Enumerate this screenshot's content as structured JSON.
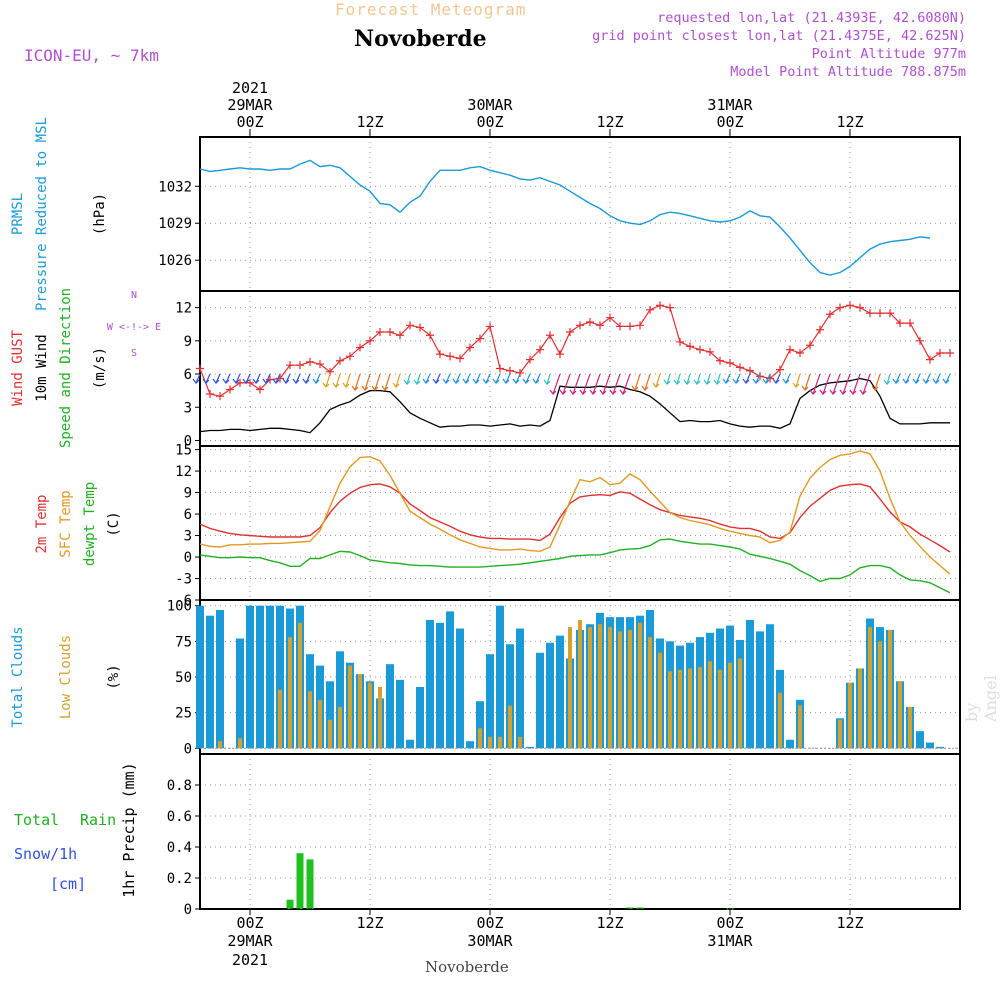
{
  "header": {
    "title_top": "Forecast Meteogram",
    "location": "Novoberde",
    "model": "ICON-EU, ~ 7km",
    "requested": "requested lon,lat (21.4393E, 42.6080N)",
    "grid_point": "grid point closest lon,lat (21.4375E, 42.625N)",
    "point_alt": "Point Altitude 977m",
    "model_alt": "Model Point Altitude 788.875m",
    "footer_location": "Novoberde",
    "watermark": "by Angel"
  },
  "time_axis": {
    "top_year": "2021",
    "ticks": [
      {
        "hour": 0,
        "label": "00Z",
        "date": "29MAR",
        "year": "2021"
      },
      {
        "hour": 12,
        "label": "12Z",
        "date": "",
        "year": ""
      },
      {
        "hour": 24,
        "label": "00Z",
        "date": "30MAR",
        "year": ""
      },
      {
        "hour": 36,
        "label": "12Z",
        "date": "",
        "year": ""
      },
      {
        "hour": 48,
        "label": "00Z",
        "date": "31MAR",
        "year": ""
      },
      {
        "hour": 60,
        "label": "12Z",
        "date": "",
        "year": ""
      }
    ],
    "x_range_hours": [
      -5,
      71
    ]
  },
  "panels": {
    "pressure": {
      "labels": [
        "PRMSL",
        "Pressure Reduced to MSL"
      ],
      "unit": "(hPa)",
      "label_color": "#1a9ad6"
    },
    "wind": {
      "labels": [
        "Wind GUST",
        "10m Wind",
        "Speed and Direction"
      ],
      "label_colors": [
        "#e03030",
        "#000000",
        "#20b020"
      ],
      "unit": "(m/s)",
      "compass": [
        "N",
        "W <-!-> E",
        "S"
      ]
    },
    "temp": {
      "labels": [
        "2m Temp",
        "SFC Temp",
        "dewpt Temp"
      ],
      "label_colors": [
        "#e03030",
        "#e09a20",
        "#20b020"
      ],
      "unit": "(C)"
    },
    "clouds": {
      "labels": [
        "Total Clouds",
        "Low Clouds"
      ],
      "label_colors": [
        "#1a9ad6",
        "#d4a030"
      ],
      "unit": "(%)"
    },
    "precip": {
      "labels": [
        "Total",
        "Rain",
        "Snow/1h",
        "[cm]"
      ],
      "label_colors": [
        "#20b020",
        "#20b020",
        "#3050e0",
        "#3050e0"
      ],
      "unit": "1hr Precip (mm)"
    }
  },
  "chart_data": [
    {
      "type": "line",
      "title": "PRMSL Pressure Reduced to MSL",
      "ylabel": "(hPa)",
      "ylim": [
        1023.5,
        1036
      ],
      "yticks": [
        1026,
        1029,
        1032
      ],
      "x_hours": [
        -5,
        -4,
        -3,
        -2,
        -1,
        0,
        1,
        2,
        3,
        4,
        5,
        6,
        7,
        8,
        9,
        10,
        11,
        12,
        13,
        14,
        15,
        16,
        17,
        18,
        19,
        20,
        21,
        22,
        23,
        24,
        25,
        26,
        27,
        28,
        29,
        30,
        31,
        32,
        33,
        34,
        35,
        36,
        37,
        38,
        39,
        40,
        41,
        42,
        43,
        44,
        45,
        46,
        47,
        48,
        49,
        50,
        51,
        52,
        53,
        54,
        55,
        56,
        57,
        58,
        59,
        60,
        61,
        62,
        63,
        64,
        65,
        66,
        67,
        68,
        69,
        70
      ],
      "series": [
        {
          "name": "PRMSL",
          "color": "#1a9ad6",
          "values": [
            1033.4,
            1033.2,
            1033.3,
            1033.4,
            1033.5,
            1033.4,
            1033.4,
            1033.3,
            1033.4,
            1033.4,
            1033.8,
            1034.1,
            1033.6,
            1033.7,
            1033.5,
            1032.8,
            1032.1,
            1031.6,
            1030.6,
            1030.5,
            1029.9,
            1030.7,
            1031.2,
            1032.4,
            1033.3,
            1033.3,
            1033.3,
            1033.5,
            1033.6,
            1033.3,
            1033.1,
            1032.9,
            1032.6,
            1032.5,
            1032.7,
            1032.4,
            1032.1,
            1031.6,
            1031.1,
            1030.6,
            1030.2,
            1029.6,
            1029.2,
            1029.0,
            1028.9,
            1029.2,
            1029.7,
            1029.9,
            1029.8,
            1029.6,
            1029.4,
            1029.2,
            1029.1,
            1029.2,
            1029.5,
            1030.0,
            1029.6,
            1029.5,
            1028.7,
            1027.8,
            1026.8,
            1025.8,
            1025.0,
            1024.8,
            1025.0,
            1025.5,
            1026.2,
            1026.9,
            1027.3,
            1027.5,
            1027.6,
            1027.7,
            1027.9,
            1027.8
          ]
        }
      ]
    },
    {
      "type": "line",
      "title": "Wind GUST / 10m Wind Speed and Direction",
      "ylabel": "(m/s)",
      "ylim": [
        -0.5,
        13.5
      ],
      "yticks": [
        0,
        3,
        6,
        9,
        12
      ],
      "x_hours": [
        -5,
        -4,
        -3,
        -2,
        -1,
        0,
        1,
        2,
        3,
        4,
        5,
        6,
        7,
        8,
        9,
        10,
        11,
        12,
        13,
        14,
        15,
        16,
        17,
        18,
        19,
        20,
        21,
        22,
        23,
        24,
        25,
        26,
        27,
        28,
        29,
        30,
        31,
        32,
        33,
        34,
        35,
        36,
        37,
        38,
        39,
        40,
        41,
        42,
        43,
        44,
        45,
        46,
        47,
        48,
        49,
        50,
        51,
        52,
        53,
        54,
        55,
        56,
        57,
        58,
        59,
        60,
        61,
        62,
        63,
        64,
        65,
        66,
        67,
        68,
        69,
        70
      ],
      "series": [
        {
          "name": "Wind GUST",
          "color": "#e03030",
          "values": [
            6.5,
            4.2,
            4.0,
            4.6,
            5.2,
            5.2,
            4.6,
            5.5,
            5.6,
            6.8,
            6.8,
            7.1,
            6.9,
            6.2,
            7.2,
            7.6,
            8.4,
            9.0,
            9.8,
            9.8,
            9.5,
            10.4,
            10.2,
            9.5,
            7.8,
            7.6,
            7.4,
            8.4,
            9.2,
            10.3,
            6.5,
            6.3,
            6.1,
            7.3,
            8.2,
            9.5,
            7.8,
            9.8,
            10.4,
            10.7,
            10.4,
            11.1,
            10.3,
            10.3,
            10.4,
            11.8,
            12.2,
            12.0,
            8.9,
            8.5,
            8.2,
            8.0,
            7.2,
            7.0,
            6.6,
            6.3,
            5.8,
            5.6,
            6.4,
            8.2,
            7.9,
            8.6,
            10.0,
            11.4,
            12.0,
            12.2,
            12.0,
            11.5,
            11.5,
            11.5,
            10.6,
            10.6,
            9.0,
            7.3,
            7.9,
            7.9
          ]
        },
        {
          "name": "10m Wind",
          "color": "#000000",
          "values": [
            0.8,
            0.9,
            0.9,
            1.0,
            1.0,
            0.9,
            1.0,
            1.1,
            1.1,
            1.0,
            0.9,
            0.7,
            1.6,
            2.8,
            3.2,
            3.5,
            4.1,
            4.5,
            4.5,
            4.4,
            3.5,
            2.5,
            2.0,
            1.6,
            1.2,
            1.3,
            1.3,
            1.4,
            1.4,
            1.3,
            1.4,
            1.5,
            1.3,
            1.4,
            1.3,
            1.8,
            4.9,
            4.8,
            4.8,
            4.8,
            4.9,
            4.8,
            4.9,
            4.6,
            4.4,
            4.0,
            3.3,
            2.5,
            1.7,
            1.8,
            1.7,
            1.7,
            1.8,
            1.5,
            1.3,
            1.2,
            1.3,
            1.3,
            1.1,
            1.5,
            3.8,
            4.5,
            5.0,
            5.2,
            5.3,
            5.4,
            5.6,
            5.4,
            4.0,
            2.0,
            1.5,
            1.5,
            1.5,
            1.6,
            1.6,
            1.6
          ]
        }
      ]
    },
    {
      "type": "line",
      "title": "2m Temp / SFC Temp / dewpt Temp",
      "ylabel": "(C)",
      "ylim": [
        -6,
        15.5
      ],
      "yticks": [
        -6,
        -3,
        0,
        3,
        6,
        9,
        12,
        15
      ],
      "x_hours": [
        -5,
        -4,
        -3,
        -2,
        -1,
        0,
        1,
        2,
        3,
        4,
        5,
        6,
        7,
        8,
        9,
        10,
        11,
        12,
        13,
        14,
        15,
        16,
        17,
        18,
        19,
        20,
        21,
        22,
        23,
        24,
        25,
        26,
        27,
        28,
        29,
        30,
        31,
        32,
        33,
        34,
        35,
        36,
        37,
        38,
        39,
        40,
        41,
        42,
        43,
        44,
        45,
        46,
        47,
        48,
        49,
        50,
        51,
        52,
        53,
        54,
        55,
        56,
        57,
        58,
        59,
        60,
        61,
        62,
        63,
        64,
        65,
        66,
        67,
        68,
        69,
        70
      ],
      "series": [
        {
          "name": "2m Temp",
          "color": "#e03030",
          "values": [
            4.6,
            4.0,
            3.6,
            3.3,
            3.1,
            3.0,
            2.9,
            2.8,
            2.8,
            2.8,
            2.8,
            3.0,
            4.1,
            6.2,
            7.8,
            8.9,
            9.7,
            10.1,
            10.2,
            9.8,
            8.9,
            7.4,
            6.5,
            5.5,
            4.9,
            4.3,
            3.6,
            3.1,
            2.8,
            2.6,
            2.6,
            2.5,
            2.5,
            2.5,
            2.3,
            3.2,
            5.5,
            7.5,
            8.4,
            8.6,
            8.7,
            8.6,
            9.1,
            8.9,
            8.1,
            7.3,
            6.6,
            6.2,
            5.8,
            5.6,
            5.4,
            5.1,
            4.6,
            4.2,
            4.0,
            4.0,
            3.6,
            2.8,
            2.6,
            3.4,
            5.5,
            7.1,
            8.2,
            9.3,
            9.9,
            10.1,
            10.2,
            9.8,
            8.1,
            6.3,
            4.9,
            4.2,
            3.2,
            2.4,
            1.6,
            0.7
          ]
        },
        {
          "name": "SFC Temp",
          "color": "#e09a20",
          "values": [
            1.8,
            1.5,
            1.4,
            1.7,
            1.7,
            1.8,
            1.8,
            1.9,
            1.9,
            2.0,
            2.1,
            2.2,
            3.7,
            7.0,
            10.3,
            12.6,
            13.9,
            14.0,
            13.4,
            11.4,
            8.9,
            6.4,
            5.5,
            4.6,
            3.9,
            3.1,
            2.4,
            1.9,
            1.4,
            1.2,
            1.0,
            1.0,
            1.1,
            0.9,
            0.8,
            1.4,
            4.5,
            7.8,
            10.8,
            10.5,
            11.1,
            10.1,
            10.3,
            11.6,
            10.8,
            9.2,
            7.7,
            6.2,
            5.5,
            5.1,
            4.8,
            4.5,
            4.0,
            3.6,
            3.3,
            3.0,
            2.8,
            2.0,
            2.3,
            3.5,
            8.5,
            11.0,
            12.5,
            13.6,
            14.2,
            14.4,
            14.8,
            14.4,
            12.0,
            8.2,
            4.9,
            3.0,
            1.5,
            0.0,
            -1.2,
            -2.4
          ]
        },
        {
          "name": "dewpt Temp",
          "color": "#20b020",
          "values": [
            0.3,
            0.1,
            -0.1,
            -0.1,
            0.0,
            -0.1,
            -0.1,
            -0.5,
            -0.8,
            -1.3,
            -1.3,
            -0.2,
            -0.2,
            0.3,
            0.8,
            0.7,
            0.2,
            -0.4,
            -0.6,
            -0.8,
            -0.9,
            -1.1,
            -1.2,
            -1.2,
            -1.3,
            -1.4,
            -1.4,
            -1.4,
            -1.4,
            -1.3,
            -1.2,
            -1.1,
            -1.0,
            -0.8,
            -0.6,
            -0.4,
            -0.2,
            0.1,
            0.2,
            0.3,
            0.3,
            0.6,
            1.0,
            1.1,
            1.2,
            1.6,
            2.4,
            2.5,
            2.2,
            2.0,
            1.8,
            1.8,
            1.6,
            1.4,
            1.1,
            0.4,
            0.1,
            -0.2,
            -0.6,
            -1.0,
            -1.9,
            -2.6,
            -3.4,
            -3.0,
            -3.0,
            -2.5,
            -1.5,
            -1.2,
            -1.2,
            -1.5,
            -2.5,
            -3.2,
            -3.3,
            -3.6,
            -4.3,
            -5.0
          ]
        }
      ]
    },
    {
      "type": "bar",
      "title": "Total Clouds / Low Clouds",
      "ylabel": "(%)",
      "ylim": [
        -4,
        104
      ],
      "yticks": [
        0,
        25,
        50,
        75,
        100
      ],
      "x_hours": [
        -5,
        -4,
        -3,
        -2,
        -1,
        0,
        1,
        2,
        3,
        4,
        5,
        6,
        7,
        8,
        9,
        10,
        11,
        12,
        13,
        14,
        15,
        16,
        17,
        18,
        19,
        20,
        21,
        22,
        23,
        24,
        25,
        26,
        27,
        28,
        29,
        30,
        31,
        32,
        33,
        34,
        35,
        36,
        37,
        38,
        39,
        40,
        41,
        42,
        43,
        44,
        45,
        46,
        47,
        48,
        49,
        50,
        51,
        52,
        53,
        54,
        55,
        56,
        57,
        58,
        59,
        60,
        61,
        62,
        63,
        64,
        65,
        66,
        67,
        68,
        69,
        70
      ],
      "series": [
        {
          "name": "Total Clouds",
          "color": "#1a9ad6",
          "values": [
            100,
            93,
            97,
            0,
            77,
            100,
            100,
            100,
            100,
            98,
            100,
            66,
            58,
            47,
            68,
            60,
            52,
            47,
            35,
            59,
            48,
            6,
            43,
            90,
            88,
            96,
            84,
            5,
            33,
            66,
            100,
            73,
            84,
            1,
            67,
            74,
            79,
            63,
            83,
            87,
            95,
            92,
            92,
            92,
            93,
            97,
            77,
            75,
            72,
            74,
            78,
            81,
            84,
            86,
            76,
            90,
            82,
            87,
            55,
            6,
            34,
            0,
            0,
            0,
            21,
            46,
            56,
            91,
            85,
            83,
            47,
            29,
            12,
            4,
            1,
            0
          ]
        },
        {
          "name": "Low Clouds",
          "color": "#d4a030",
          "values": [
            0,
            0,
            5,
            0,
            7,
            0,
            0,
            0,
            41,
            78,
            88,
            40,
            34,
            20,
            29,
            58,
            52,
            46,
            43,
            0,
            0,
            0,
            0,
            0,
            0,
            0,
            0,
            0,
            14,
            8,
            8,
            30,
            8,
            0,
            0,
            0,
            0,
            85,
            90,
            85,
            87,
            85,
            82,
            83,
            88,
            78,
            67,
            54,
            55,
            56,
            57,
            61,
            55,
            60,
            63,
            0,
            0,
            0,
            39,
            0,
            30,
            0,
            0,
            0,
            20,
            46,
            56,
            85,
            75,
            83,
            47,
            29,
            0,
            0,
            0,
            0
          ]
        }
      ]
    },
    {
      "type": "bar",
      "title": "1hr Precip",
      "ylabel": "1hr Precip (mm)",
      "ylim": [
        0,
        1
      ],
      "yticks": [
        0,
        0.2,
        0.4,
        0.6,
        0.8
      ],
      "x_hours": [
        4,
        5,
        6,
        38,
        39,
        48
      ],
      "series": [
        {
          "name": "Total Rain",
          "color": "#20c020",
          "values": [
            0.06,
            0.36,
            0.32,
            0.01,
            0.01,
            0.005
          ]
        }
      ]
    }
  ]
}
